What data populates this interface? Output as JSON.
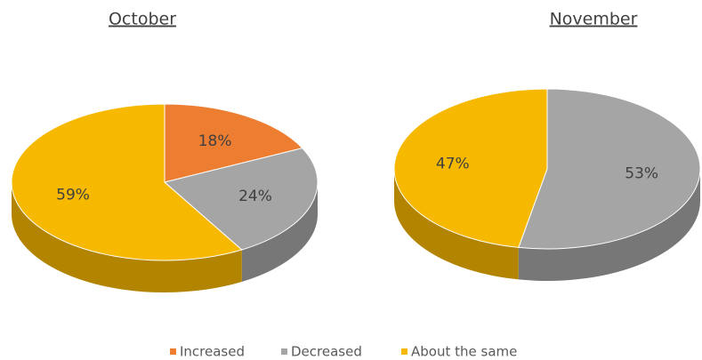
{
  "chart_data": [
    {
      "type": "pie",
      "title": "October",
      "categories": [
        "Increased",
        "Decreased",
        "About the same"
      ],
      "values": [
        18,
        24,
        59
      ],
      "value_labels": [
        "18%",
        "24%",
        "59%"
      ],
      "colors": [
        "#ed7d31",
        "#a5a5a5",
        "#f7b800"
      ]
    },
    {
      "type": "pie",
      "title": "November",
      "categories": [
        "Decreased",
        "About the same"
      ],
      "values": [
        53,
        47
      ],
      "value_labels": [
        "53%",
        "47%"
      ],
      "colors": [
        "#a5a5a5",
        "#f7b800"
      ]
    }
  ]
}
